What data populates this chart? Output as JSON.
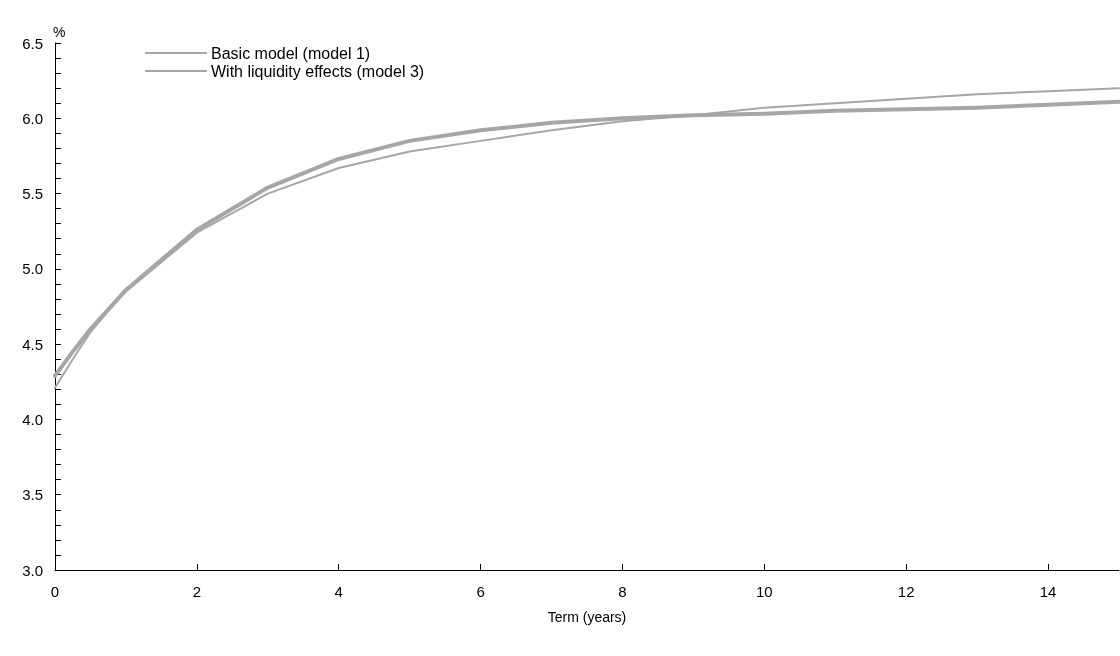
{
  "chart_data": {
    "type": "line",
    "xlabel": "Term (years)",
    "ylabel": "%",
    "xlim": [
      0,
      15
    ],
    "xticks": [
      0,
      2,
      4,
      6,
      8,
      10,
      12,
      14
    ],
    "ylim": [
      3,
      6.5
    ],
    "yticks": [
      {
        "value": 3,
        "label": "3.0"
      },
      {
        "value": 3.1,
        "label": null
      },
      {
        "value": 3.2,
        "label": null
      },
      {
        "value": 3.3,
        "label": null
      },
      {
        "value": 3.4,
        "label": null
      },
      {
        "value": 3.5,
        "label": "3.5"
      },
      {
        "value": 3.6,
        "label": null
      },
      {
        "value": 3.7,
        "label": null
      },
      {
        "value": 3.8,
        "label": null
      },
      {
        "value": 3.9,
        "label": null
      },
      {
        "value": 4,
        "label": "4.0"
      },
      {
        "value": 4.1,
        "label": null
      },
      {
        "value": 4.2,
        "label": null
      },
      {
        "value": 4.3,
        "label": null
      },
      {
        "value": 4.4,
        "label": null
      },
      {
        "value": 4.5,
        "label": "4.5"
      },
      {
        "value": 4.6,
        "label": null
      },
      {
        "value": 4.7,
        "label": null
      },
      {
        "value": 4.8,
        "label": null
      },
      {
        "value": 4.9,
        "label": null
      },
      {
        "value": 5,
        "label": "5.0"
      },
      {
        "value": 5.1,
        "label": null
      },
      {
        "value": 5.2,
        "label": null
      },
      {
        "value": 5.3,
        "label": null
      },
      {
        "value": 5.4,
        "label": null
      },
      {
        "value": 5.5,
        "label": "5.5"
      },
      {
        "value": 5.6,
        "label": null
      },
      {
        "value": 5.7,
        "label": null
      },
      {
        "value": 5.8,
        "label": null
      },
      {
        "value": 5.9,
        "label": null
      },
      {
        "value": 6,
        "label": "6.0"
      },
      {
        "value": 6.1,
        "label": null
      },
      {
        "value": 6.2,
        "label": null
      },
      {
        "value": 6.3,
        "label": null
      },
      {
        "value": 6.4,
        "label": null
      },
      {
        "value": 6.5,
        "label": "6.5"
      }
    ],
    "x": [
      0,
      0.25,
      0.5,
      0.75,
      1,
      2,
      3,
      4,
      5,
      6,
      7,
      8,
      9,
      10,
      11,
      12,
      13,
      14,
      15
    ],
    "series": [
      {
        "name": "Basic model (model 1)",
        "color": "#a6a6a6",
        "values": [
          4.29,
          4.45,
          4.6,
          4.73,
          4.86,
          5.26,
          5.54,
          5.73,
          5.85,
          5.92,
          5.97,
          6.0,
          6.02,
          6.03,
          6.05,
          6.06,
          6.07,
          6.09,
          6.11
        ]
      },
      {
        "name": "With liquidity effects (model 3)",
        "color": "#a6a6a6",
        "values": [
          4.21,
          4.4,
          4.58,
          4.72,
          4.85,
          5.24,
          5.5,
          5.67,
          5.78,
          5.85,
          5.92,
          5.98,
          6.02,
          6.07,
          6.1,
          6.13,
          6.16,
          6.18,
          6.2
        ]
      }
    ],
    "legend": "top left",
    "grid": false,
    "marker": "none",
    "line_style": "solid"
  }
}
